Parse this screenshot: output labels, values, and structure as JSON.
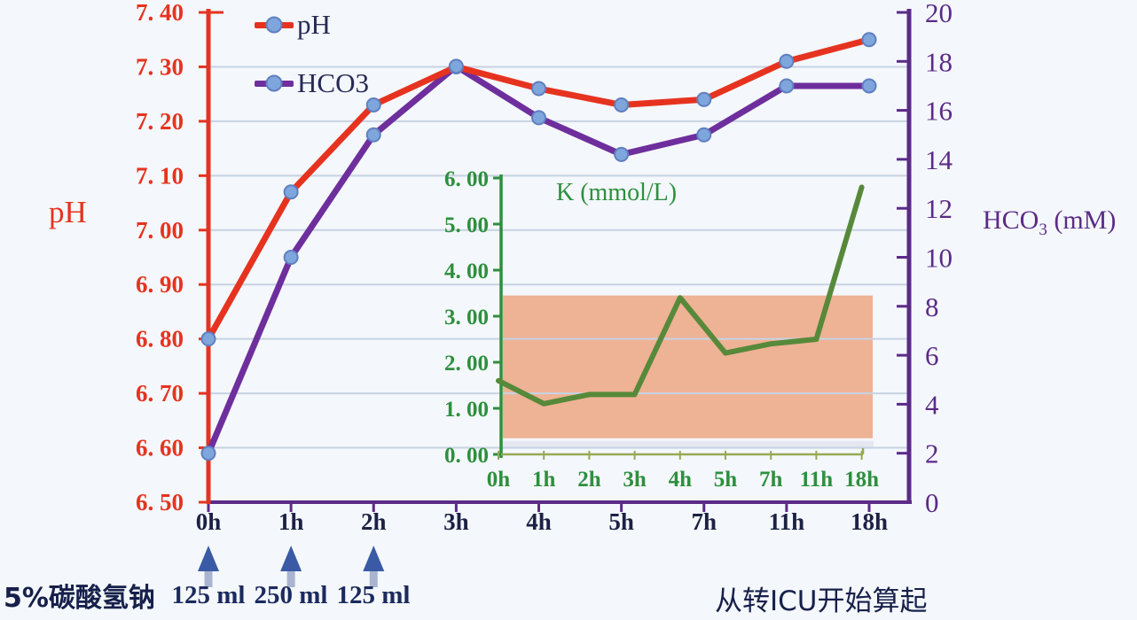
{
  "chart_data": {
    "type": "line",
    "categories": [
      "0h",
      "1h",
      "2h",
      "3h",
      "4h",
      "5h",
      "7h",
      "11h",
      "18h"
    ],
    "series": [
      {
        "name": "pH",
        "axis": "left",
        "color": "#e6331f",
        "values": [
          6.8,
          7.07,
          7.23,
          7.3,
          7.26,
          7.23,
          7.24,
          7.31,
          7.35
        ]
      },
      {
        "name": "HCO3",
        "axis": "right",
        "color": "#6e2f9d",
        "values": [
          2,
          10,
          15,
          17.8,
          15.7,
          14.2,
          15,
          17,
          17
        ]
      }
    ],
    "marker_color": "#7ea6dc",
    "marker_border": "#5f7fc0",
    "gridline_color": "#c7d3e3",
    "background": "#f4f7fb",
    "left_axis": {
      "title": "pH",
      "min": 6.5,
      "max": 7.4,
      "tick_step": 0.1,
      "color": "#e6331f",
      "tick_labels": [
        "7. 40",
        "7. 30",
        "7. 20",
        "7. 10",
        "7. 00",
        "6. 90",
        "6. 80",
        "6. 70",
        "6. 60",
        "6. 50"
      ]
    },
    "right_axis": {
      "title_pre": "HCO",
      "title_sub": "3",
      "title_post": " (mM)",
      "min": 0,
      "max": 20,
      "tick_step": 2,
      "color": "#5b2b87",
      "tick_labels": [
        "20",
        "18",
        "16",
        "14",
        "12",
        "10",
        "8",
        "6",
        "4",
        "2",
        "0"
      ]
    },
    "x_axis": {
      "color": "#5b2b87",
      "label_color": "#1c2144"
    },
    "legend": {
      "items": [
        {
          "label": "pH",
          "color": "#e6331f"
        },
        {
          "label": "HCO3",
          "color": "#6e2f9d"
        }
      ]
    },
    "inset": {
      "title": "K (mmol/L)",
      "type": "line",
      "color": "#57893a",
      "axis_color": "#2e8f3e",
      "x_axis_color": "#97a954",
      "categories": [
        "0h",
        "1h",
        "2h",
        "3h",
        "4h",
        "5h",
        "7h",
        "11h",
        "18h"
      ],
      "values": [
        1.6,
        1.1,
        1.3,
        1.3,
        3.4,
        2.2,
        2.4,
        2.5,
        5.8
      ],
      "ylim": [
        0,
        6
      ],
      "ytick_step": 1,
      "ytick_labels": [
        "6. 00",
        "5. 00",
        "4. 00",
        "3. 00",
        "2. 00",
        "1. 00",
        "0. 00"
      ],
      "band": {
        "from": 0.35,
        "to": 3.45,
        "color": "#eeb295",
        "shadow_color": "#e0e4ec"
      }
    }
  },
  "footer": {
    "bicarb_label": "5%碳酸氢钠",
    "doses": [
      {
        "hour": "0h",
        "volume": "125 ml"
      },
      {
        "hour": "1h",
        "volume": "250 ml"
      },
      {
        "hour": "2h",
        "volume": "125 ml"
      }
    ],
    "note": "从转ICU开始算起",
    "arrow_color": "#3a5aa5",
    "arrow_stem_color": "#a9b4d0"
  }
}
